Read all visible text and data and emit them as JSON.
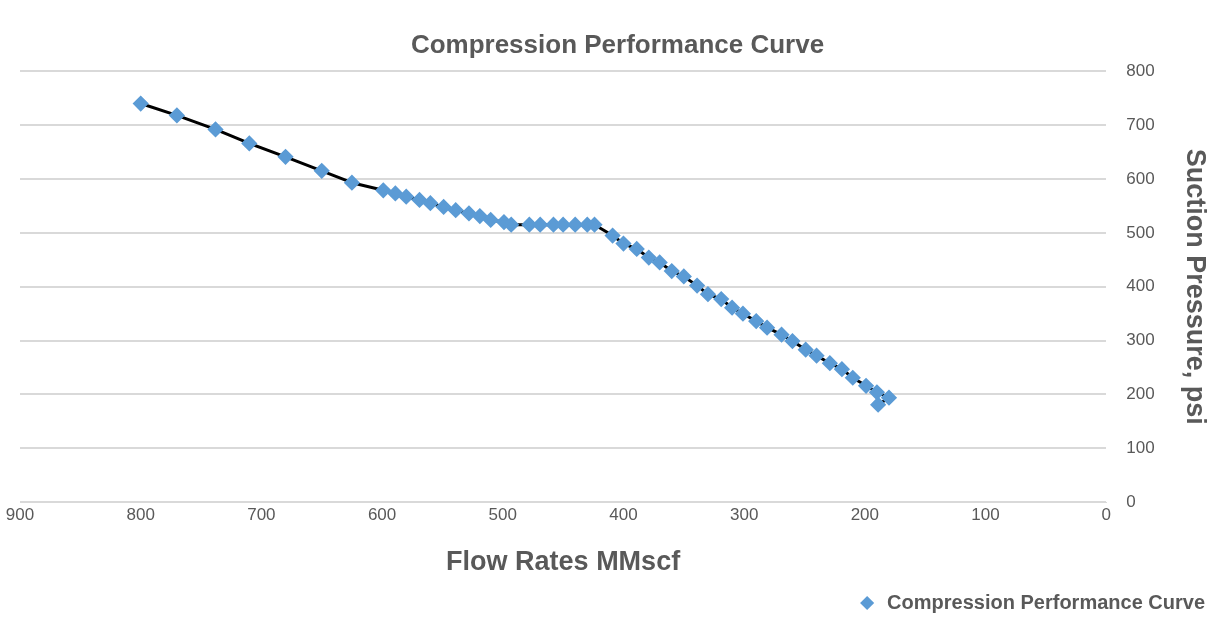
{
  "chart_data": {
    "type": "line",
    "title": "Compression Performance Curve",
    "xlabel": "Flow Rates MMscf",
    "ylabel": "Suction Pressure, psi",
    "x": [
      800,
      770,
      738,
      710,
      680,
      650,
      625,
      599,
      589,
      580,
      569,
      560,
      549,
      539,
      528,
      519,
      510,
      499,
      493,
      478,
      469,
      458,
      450,
      440,
      430,
      424,
      409,
      400,
      389,
      379,
      370,
      360,
      350,
      339,
      330,
      319,
      310,
      301,
      290,
      281,
      269,
      260,
      249,
      240,
      229,
      219,
      210,
      199,
      190,
      180,
      189
    ],
    "series": [
      {
        "name": "Compression Performance Curve",
        "color": "#5b9bd5",
        "values": [
          740,
          718,
          692,
          666,
          641,
          615,
          593,
          579,
          573,
          567,
          561,
          555,
          548,
          542,
          536,
          531,
          524,
          520,
          515,
          515,
          515,
          515,
          515,
          515,
          515,
          515,
          495,
          480,
          470,
          454,
          445,
          429,
          419,
          402,
          386,
          377,
          361,
          350,
          336,
          324,
          311,
          299,
          283,
          272,
          258,
          247,
          231,
          216,
          204,
          194,
          181
        ]
      }
    ],
    "xlim": [
      900,
      0
    ],
    "xticks": [
      900,
      800,
      700,
      600,
      500,
      400,
      300,
      200,
      100,
      0
    ],
    "ylim": [
      0,
      800
    ],
    "yticks": [
      0,
      100,
      200,
      300,
      400,
      500,
      600,
      700,
      800
    ],
    "grid": "y",
    "legend": "bottom right",
    "marker": "diamond",
    "line_style": "solid"
  }
}
